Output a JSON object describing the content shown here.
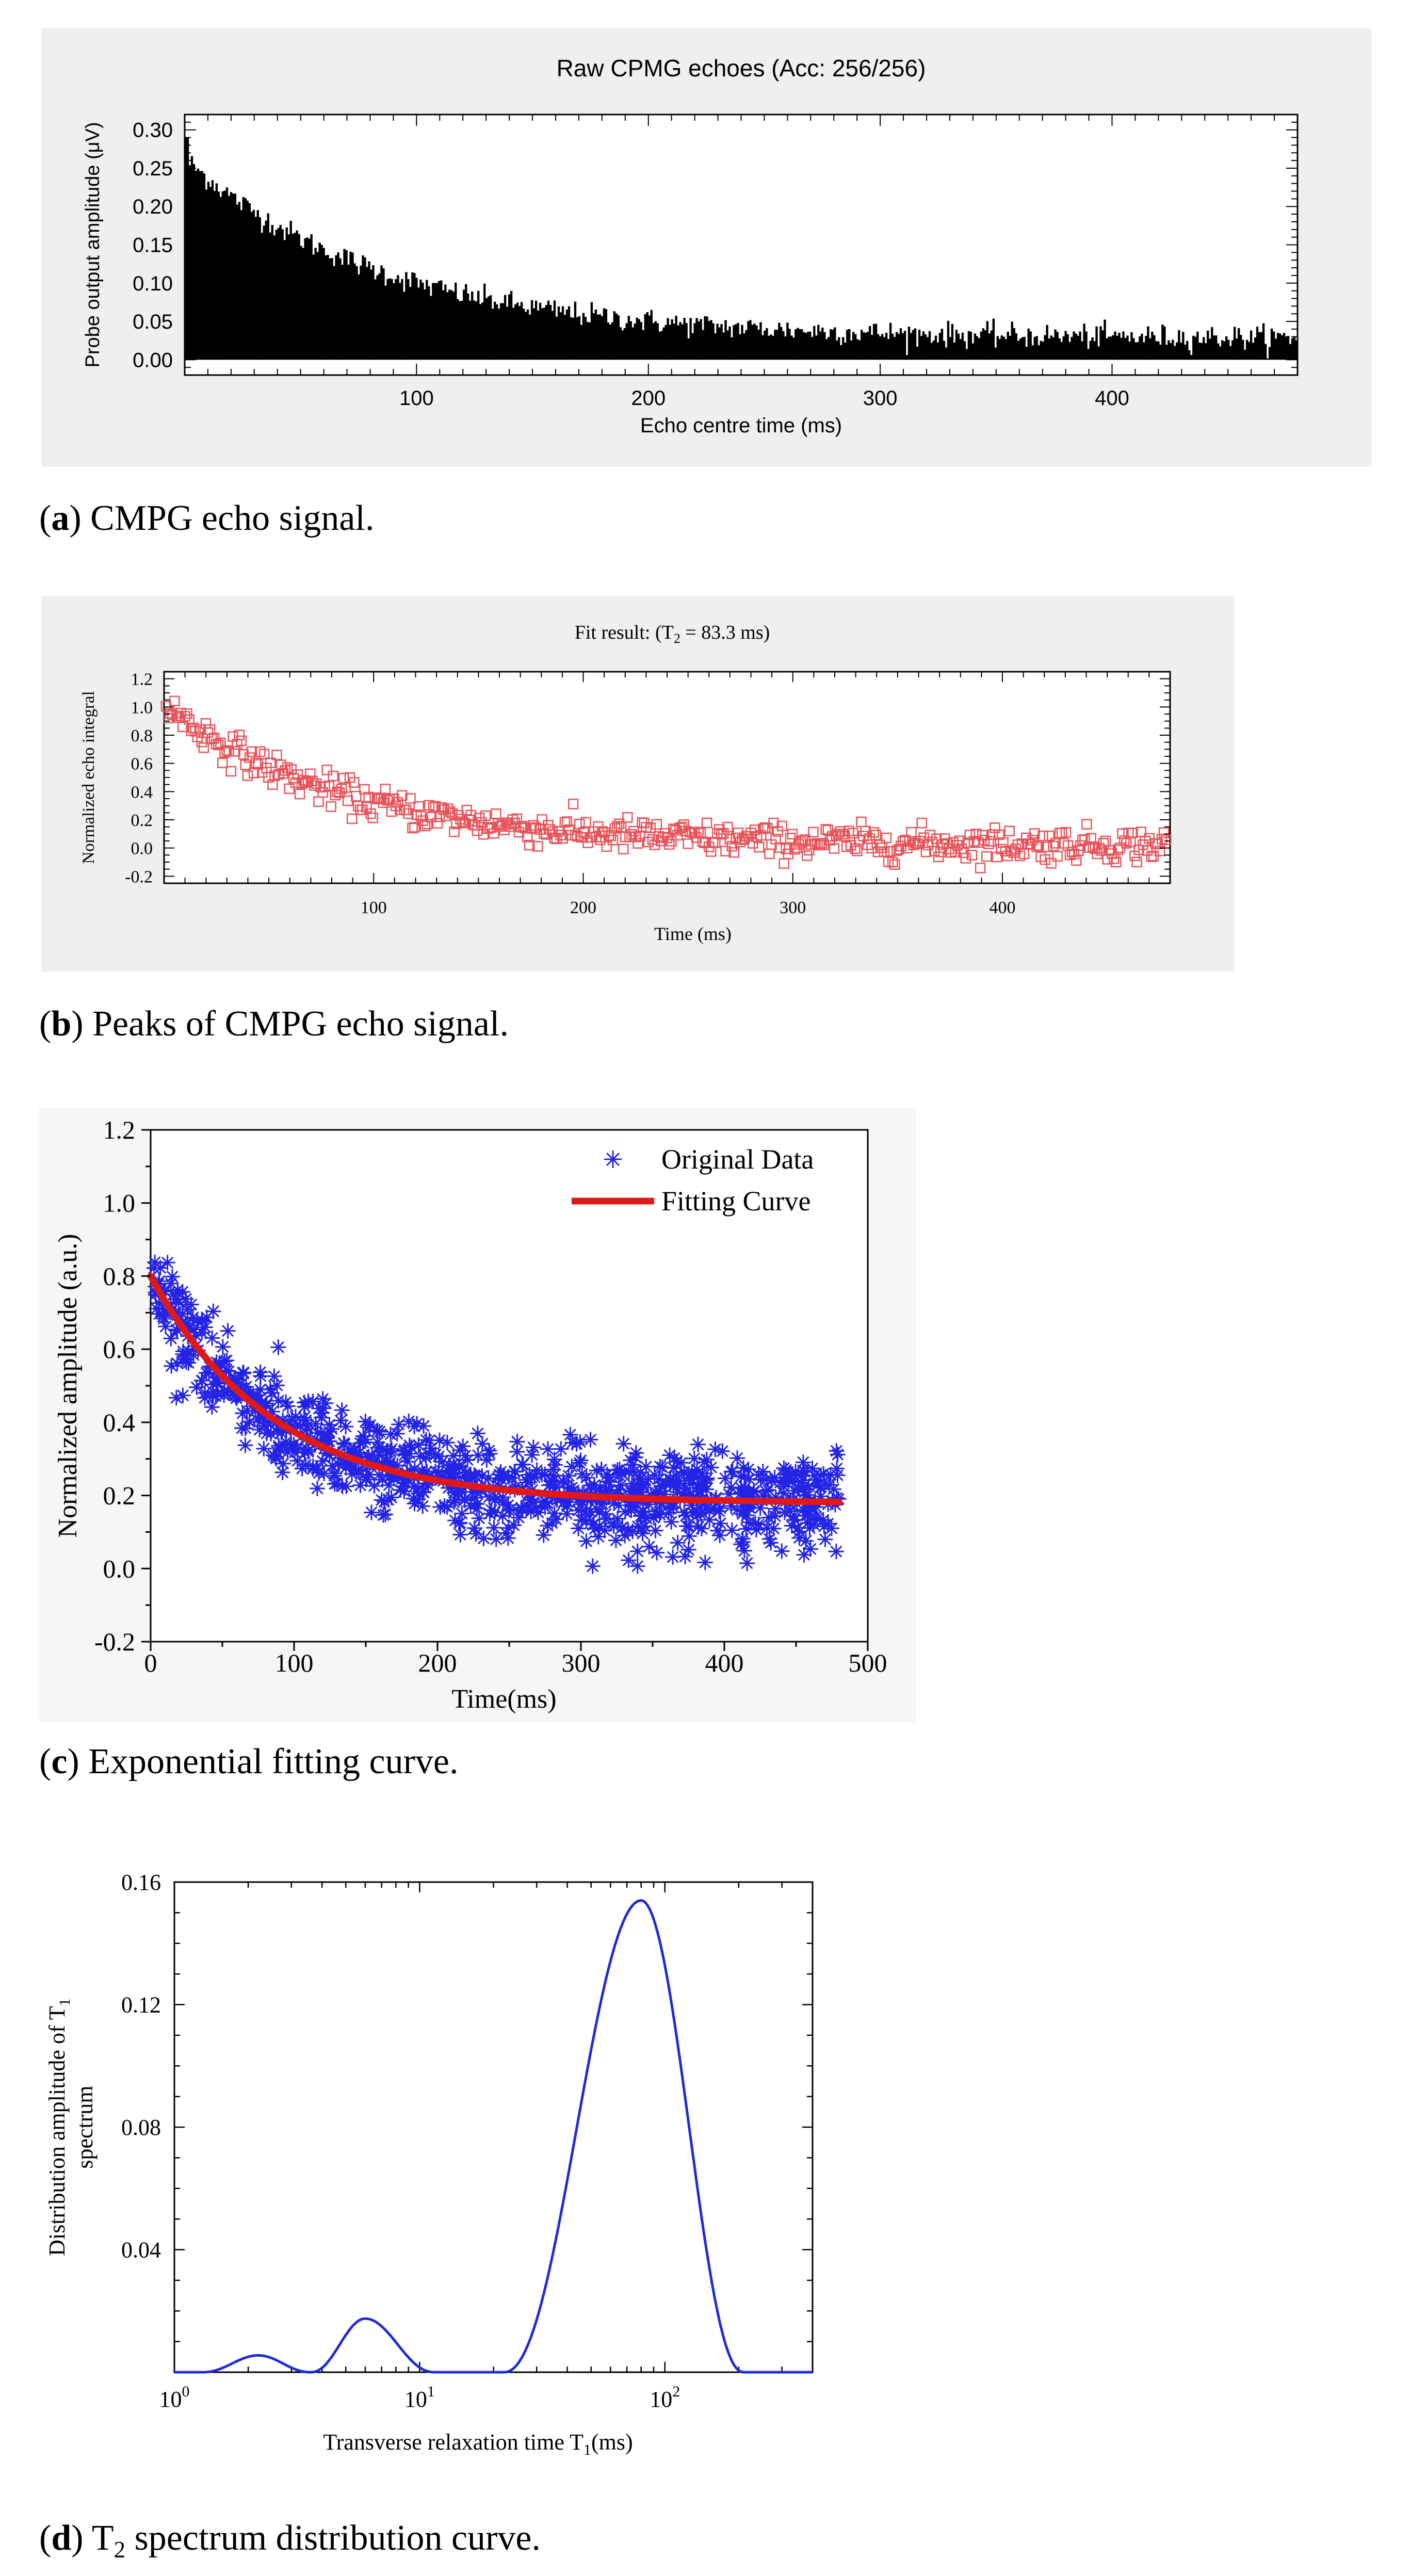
{
  "captions": [
    {
      "letter": "a",
      "text": " CMPG echo signal."
    },
    {
      "letter": "b",
      "text": " Peaks of CMPG echo signal."
    },
    {
      "letter": "c",
      "text": " Exponential fitting curve."
    },
    {
      "letter": "d",
      "text": " spectrum distribution curve.",
      "prefix": "T",
      "sub": "2"
    }
  ],
  "chart_data": [
    {
      "type": "bar",
      "title": "Raw CPMG echoes (Acc: 256/256)",
      "xlabel": "Echo centre time (ms)",
      "ylabel": "Probe output amplitude (μV)",
      "xlim": [
        0,
        480
      ],
      "ylim": [
        -0.02,
        0.32
      ],
      "xticks": [
        100,
        200,
        300,
        400
      ],
      "yticks": [
        0.0,
        0.05,
        0.1,
        0.15,
        0.2,
        0.25,
        0.3
      ],
      "ytick_labels": [
        "0.00",
        "0.05",
        "0.10",
        "0.15",
        "0.20",
        "0.25",
        "0.30"
      ],
      "model": {
        "a": 0.235,
        "tau": 85,
        "c": 0.028,
        "spike": 0.29
      },
      "color": "#000000"
    },
    {
      "type": "scatter",
      "title_pre": "Fit result: (T",
      "title_sub": "2",
      "title_post": " = 83.3 ms)",
      "xlabel": "Time (ms)",
      "ylabel": "Normalized echo integral",
      "xlim": [
        0,
        480
      ],
      "ylim": [
        -0.25,
        1.25
      ],
      "xticks": [
        100,
        200,
        300,
        400
      ],
      "yticks": [
        -0.2,
        0.0,
        0.2,
        0.4,
        0.6,
        0.8,
        1.0,
        1.2
      ],
      "ytick_labels": [
        "-0.2",
        "0.0",
        "0.2",
        "0.4",
        "0.6",
        "0.8",
        "1.0",
        "1.2"
      ],
      "model": {
        "a": 1.0,
        "tau": 83.3,
        "c": 0.02
      },
      "marker": "square",
      "color": "#e8545a"
    },
    {
      "type": "scatter",
      "xlabel": "Time(ms)",
      "ylabel": "Normalized amplitude (a.u.)",
      "xlim": [
        0,
        500
      ],
      "ylim": [
        -0.2,
        1.2
      ],
      "xticks": [
        0,
        100,
        200,
        300,
        400,
        500
      ],
      "yticks": [
        -0.2,
        0.0,
        0.2,
        0.4,
        0.6,
        0.8,
        1.0,
        1.2
      ],
      "ytick_labels": [
        "-0.2",
        "0.0",
        "0.2",
        "0.4",
        "0.6",
        "0.8",
        "1.0",
        "1.2"
      ],
      "series": [
        {
          "name": "Original Data",
          "marker": "asterisk",
          "color": "#2323e6",
          "x_range": [
            0,
            480
          ]
        },
        {
          "name": "Fitting Curve",
          "line": true,
          "color": "#e01818",
          "model": {
            "a": 0.62,
            "tau": 86,
            "c": 0.18
          },
          "x_range": [
            0,
            480
          ]
        }
      ],
      "legend": "top-right"
    },
    {
      "type": "line",
      "xlabel_pre": "Transverse relaxation time T",
      "xlabel_sub": "1",
      "xlabel_post": "(ms)",
      "ylabel_line1_pre": "Distribution amplitude of T",
      "ylabel_line1_sub": "1",
      "ylabel_line2": "spectrum",
      "xscale": "log",
      "xlim": [
        1,
        400
      ],
      "ylim": [
        0,
        0.16
      ],
      "xticks": [
        1,
        10,
        100
      ],
      "xtick_base": "10",
      "xtick_exps": [
        "0",
        "1",
        "2"
      ],
      "yticks": [
        0.04,
        0.08,
        0.12,
        0.16
      ],
      "ytick_labels": [
        "0.04",
        "0.08",
        "0.12",
        "0.16"
      ],
      "peaks": [
        {
          "center_ms": 2.2,
          "amplitude": 0.0055,
          "range_ms": [
            1.3,
            3.6
          ]
        },
        {
          "center_ms": 6.0,
          "amplitude": 0.0175,
          "range_ms": [
            3.6,
            11.5
          ]
        },
        {
          "center_ms": 80,
          "amplitude": 0.154,
          "range_ms": [
            22,
            210
          ]
        }
      ],
      "color": "#1f2bd8"
    }
  ]
}
